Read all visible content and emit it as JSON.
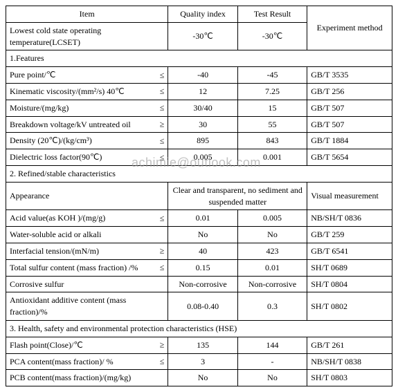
{
  "watermark": "achimie@outlook.com",
  "headers": {
    "item": "Item",
    "quality": "Quality index",
    "result": "Test Result",
    "method": "Experiment method"
  },
  "lcset": {
    "label": "Lowest cold state operating temperature(LCSET)",
    "quality": "-30℃",
    "result": "-30℃"
  },
  "sections": {
    "s1": "1.Features",
    "s2": "2. Refined/stable characteristics",
    "s3": "3. Health, safety and environmental protection characteristics (HSE)"
  },
  "rows": {
    "pure": {
      "label": "Pure point/℃",
      "op": "≤",
      "q": "-40",
      "r": "-45",
      "m": "GB/T 3535"
    },
    "kv": {
      "label": "Kinematic viscosity/(mm²/s) 40℃",
      "op": "≤",
      "q": "12",
      "r": "7.25",
      "m": "GB/T 256"
    },
    "moist": {
      "label": "Moisture/(mg/kg)",
      "op": "≤",
      "q": "30/40",
      "r": "15",
      "m": "GB/T 507"
    },
    "bdv": {
      "label": "Breakdown voltage/kV untreated oil",
      "op": "≥",
      "q": "30",
      "r": "55",
      "m": "GB/T 507"
    },
    "dens": {
      "label": "Density (20℃)/(kg/cm³)",
      "op": "≤",
      "q": "895",
      "r": "843",
      "m": "GB/T 1884"
    },
    "dlf": {
      "label": "Dielectric loss factor(90℃)",
      "op": "≤",
      "q": "0.005",
      "r": "0.001",
      "m": "GB/T 5654"
    },
    "app": {
      "label": "Appearance",
      "qr": "Clear and transparent, no sediment and suspended matter",
      "m": "Visual measurement"
    },
    "acid": {
      "label": "Acid value(as KOH )/(mg/g)",
      "op": "≤",
      "q": "0.01",
      "r": "0.005",
      "m": "NB/SH/T 0836"
    },
    "wsa": {
      "label": "Water-soluble acid or alkali",
      "q": "No",
      "r": "No",
      "m": "GB/T 259"
    },
    "ift": {
      "label": "Interfacial tension/(mN/m)",
      "op": "≥",
      "q": "40",
      "r": "423",
      "m": "GB/T 6541"
    },
    "tsc": {
      "label": "Total sulfur content (mass fraction) /%",
      "op": "≤",
      "q": "0.15",
      "r": "0.01",
      "m": "SH/T 0689"
    },
    "cs": {
      "label": "Corrosive sulfur",
      "q": "Non-corrosive",
      "r": "Non-corrosive",
      "m": "SH/T 0804"
    },
    "aac": {
      "label": "Antioxidant additive content (mass fraction)/%",
      "q": "0.08-0.40",
      "r": "0.3",
      "m": "SH/T 0802"
    },
    "fp": {
      "label": "Flash point(Close)/℃",
      "op": "≥",
      "q": "135",
      "r": "144",
      "m": "GB/T 261"
    },
    "pca": {
      "label": "PCA content(mass fraction)/ %",
      "op": "≤",
      "q": "3",
      "r": "-",
      "m": "NB/SH/T 0838"
    },
    "pcb": {
      "label": "PCB content(mass fraction)/(mg/kg)",
      "q": "No",
      "r": "No",
      "m": "SH/T 0803"
    }
  }
}
